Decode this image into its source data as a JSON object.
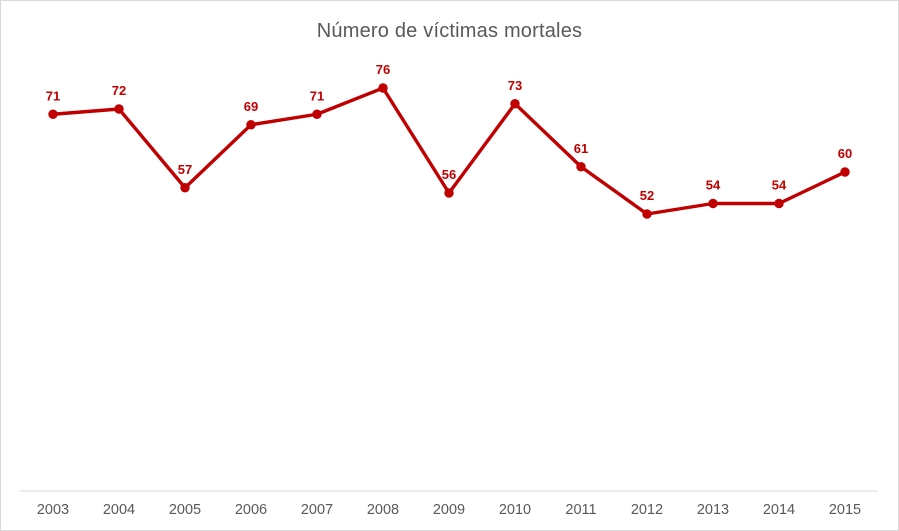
{
  "chart": {
    "background": "#FFFFFF",
    "border_color": "#D9D9D9"
  },
  "chart_data": {
    "type": "line",
    "title": "Número de víctimas mortales",
    "title_color": "#595959",
    "categories": [
      "2003",
      "2004",
      "2005",
      "2006",
      "2007",
      "2008",
      "2009",
      "2010",
      "2011",
      "2012",
      "2013",
      "2014",
      "2015"
    ],
    "series": [
      {
        "name": "Número de víctimas mortales",
        "values": [
          71,
          72,
          57,
          69,
          71,
          76,
          56,
          73,
          61,
          52,
          54,
          54,
          60
        ],
        "color": "#C00000"
      }
    ],
    "data_labels": true,
    "data_label_color": "#C00000",
    "marker": "circle",
    "xlabel": "",
    "ylabel": "",
    "ylim": [
      0,
      80
    ],
    "grid": false,
    "legend": false,
    "axis_line_color": "#D9D9D9",
    "tick_label_color": "#595959"
  }
}
